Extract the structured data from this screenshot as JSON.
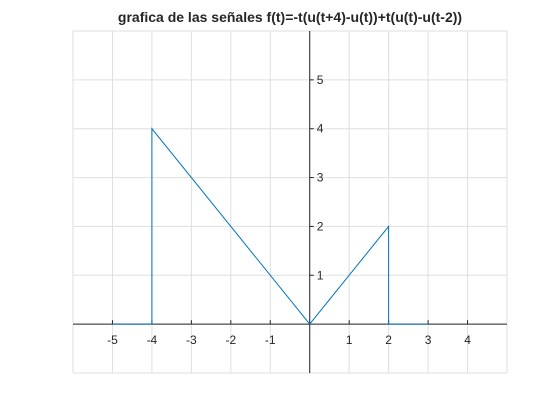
{
  "chart_data": {
    "type": "line",
    "title": "grafica de las señales f(t)=-t(u(t+4)-u(t))+t(u(t)-u(t-2))",
    "xlabel": "",
    "ylabel": "",
    "xlim": [
      -6,
      5
    ],
    "ylim": [
      -1,
      6
    ],
    "grid": true,
    "axis_location": "origin",
    "x_ticks": [
      -5,
      -4,
      -3,
      -2,
      -1,
      1,
      2,
      3,
      4
    ],
    "y_ticks": [
      1,
      2,
      3,
      4,
      5
    ],
    "line_color": "#0072BD",
    "series": [
      {
        "x": [
          -5,
          -4,
          -4,
          0,
          2,
          2,
          3
        ],
        "y": [
          0,
          0,
          4,
          0,
          2,
          0,
          0
        ]
      }
    ]
  }
}
